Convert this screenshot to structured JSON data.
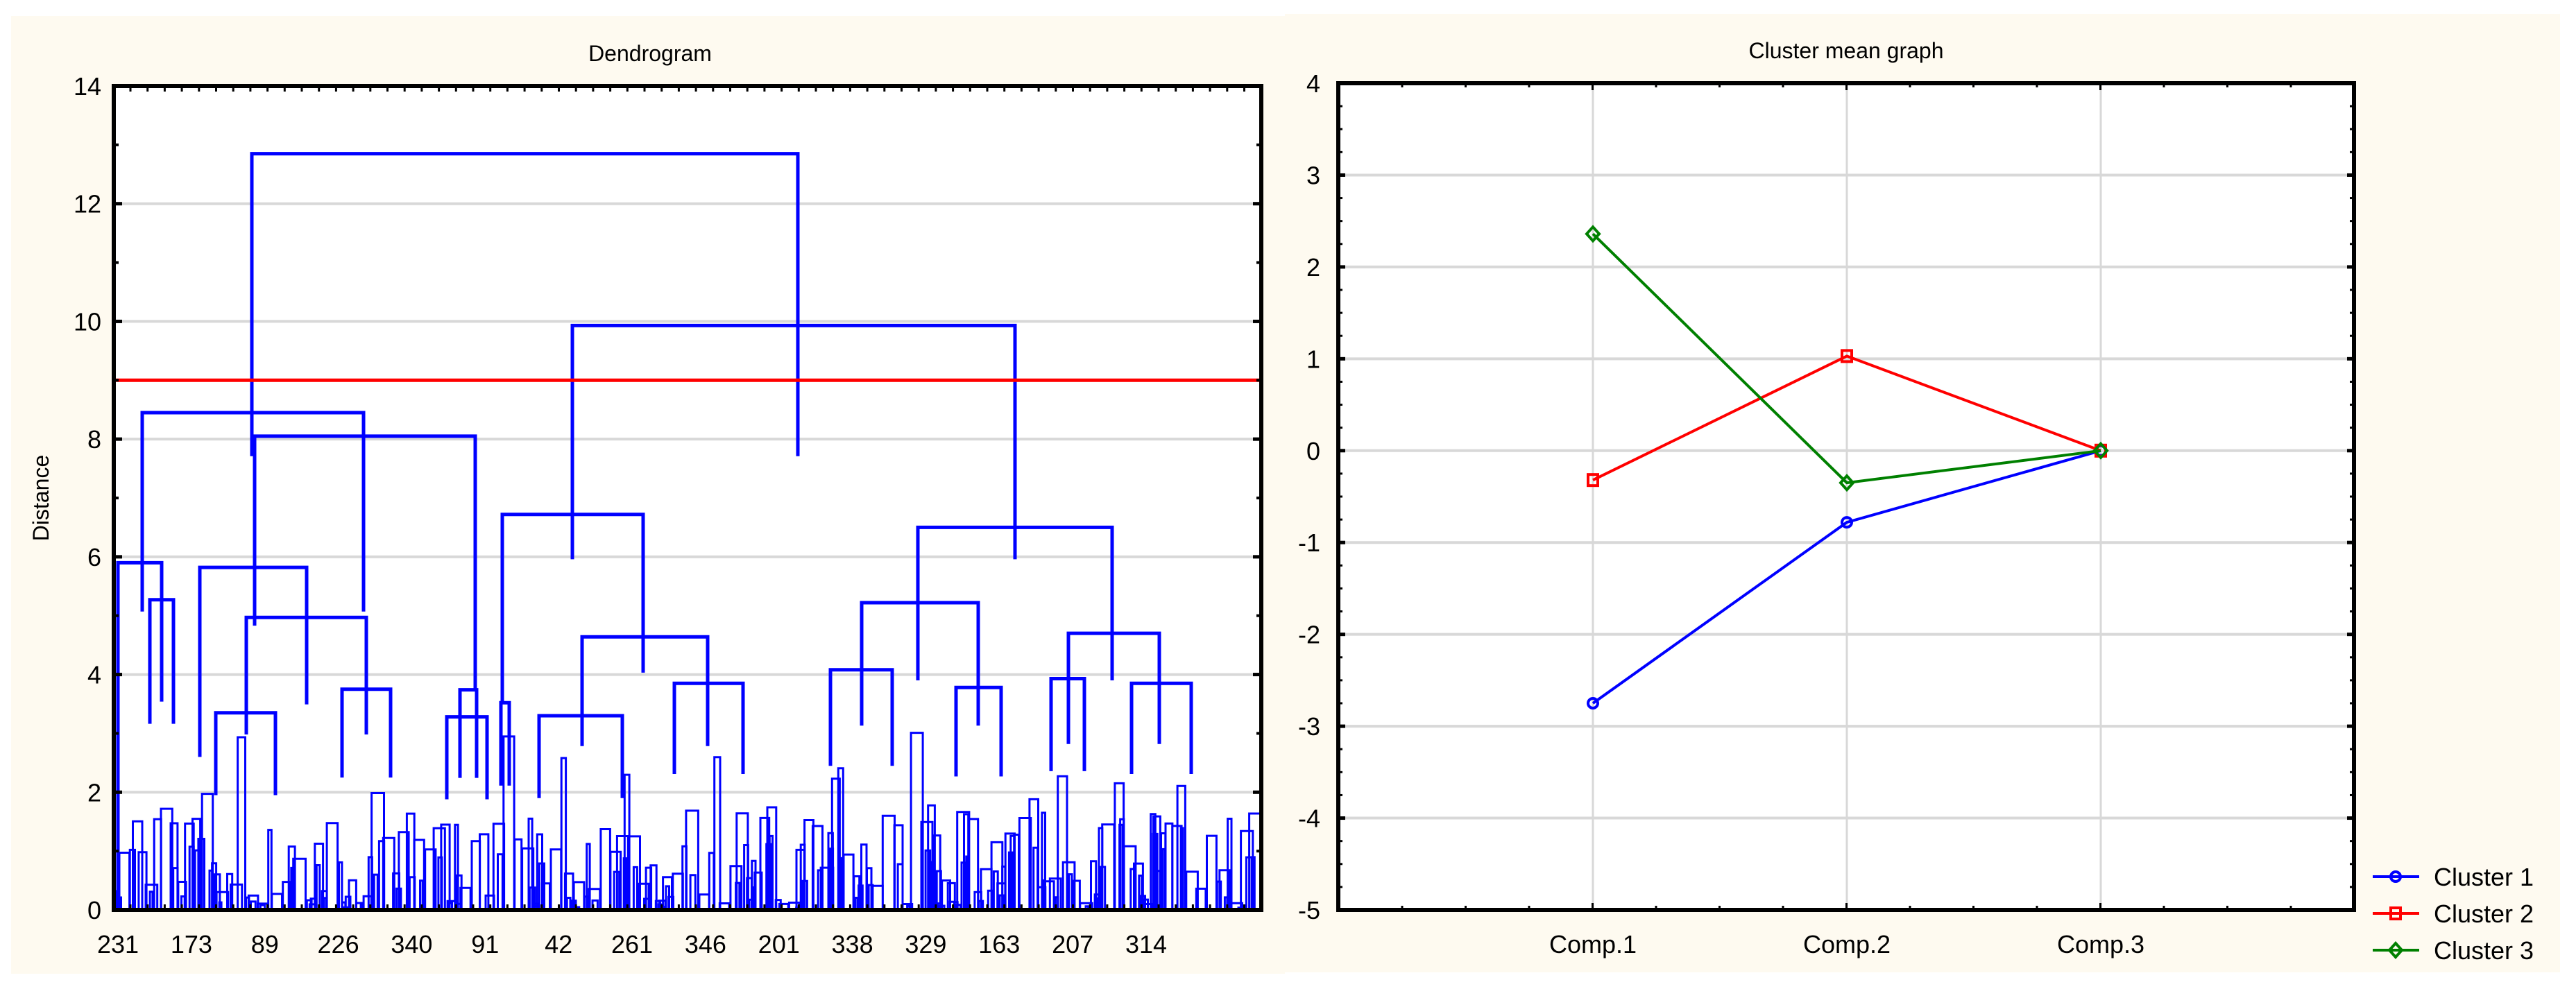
{
  "chart_data": [
    {
      "type": "dendrogram",
      "title": "Dendrogram",
      "xlabel": "",
      "ylabel": "Distance",
      "ylim": [
        0,
        14
      ],
      "yticks": [
        0,
        2,
        4,
        6,
        8,
        10,
        12,
        14
      ],
      "x_tick_labels": [
        "231",
        "173",
        "89",
        "226",
        "340",
        "91",
        "42",
        "261",
        "346",
        "201",
        "338",
        "329",
        "163",
        "207",
        "314"
      ],
      "cut_line": {
        "distance": 9.0,
        "color": "#ff0000"
      },
      "line_color": "#0000ff",
      "grid": true,
      "major_merges": [
        {
          "left_x": 363,
          "right_x": 1150,
          "height": 12.85
        },
        {
          "left_x": 205,
          "right_x": 524,
          "height": 8.45
        },
        {
          "left_x": 367,
          "right_x": 685,
          "height": 8.05
        },
        {
          "left_x": 825,
          "right_x": 1463,
          "height": 9.93
        },
        {
          "left_x": 724,
          "right_x": 927,
          "height": 6.72
        },
        {
          "left_x": 1323,
          "right_x": 1603,
          "height": 6.5
        },
        {
          "left_x": 170,
          "right_x": 233,
          "height": 5.9
        },
        {
          "left_x": 216,
          "right_x": 250,
          "height": 5.27
        },
        {
          "left_x": 288,
          "right_x": 442,
          "height": 5.82
        },
        {
          "left_x": 355,
          "right_x": 528,
          "height": 4.97
        },
        {
          "left_x": 839,
          "right_x": 1020,
          "height": 4.64
        },
        {
          "left_x": 1242,
          "right_x": 1410,
          "height": 5.22
        },
        {
          "left_x": 1540,
          "right_x": 1671,
          "height": 4.7
        },
        {
          "left_x": 311,
          "right_x": 397,
          "height": 3.35
        },
        {
          "left_x": 493,
          "right_x": 563,
          "height": 3.75
        },
        {
          "left_x": 644,
          "right_x": 702,
          "height": 3.28
        },
        {
          "left_x": 663,
          "right_x": 687,
          "height": 3.74
        },
        {
          "left_x": 722,
          "right_x": 734,
          "height": 3.52
        },
        {
          "left_x": 777,
          "right_x": 897,
          "height": 3.3
        },
        {
          "left_x": 972,
          "right_x": 1071,
          "height": 3.85
        },
        {
          "left_x": 1197,
          "right_x": 1286,
          "height": 4.08
        },
        {
          "left_x": 1378,
          "right_x": 1443,
          "height": 3.78
        },
        {
          "left_x": 1515,
          "right_x": 1563,
          "height": 3.93
        },
        {
          "left_x": 1631,
          "right_x": 1717,
          "height": 3.85
        }
      ]
    },
    {
      "type": "line",
      "title": "Cluster mean graph",
      "xlabel": "",
      "ylabel": "",
      "categories": [
        "Comp.1",
        "Comp.2",
        "Comp.3"
      ],
      "ylim": [
        -5,
        4
      ],
      "yticks": [
        -5,
        -4,
        -3,
        -2,
        -1,
        0,
        1,
        2,
        3,
        4
      ],
      "grid": true,
      "legend_position": "bottom-right",
      "series": [
        {
          "name": "Cluster 1",
          "color": "#0000ff",
          "marker": "circle",
          "values": [
            -2.75,
            -0.78,
            0.0
          ]
        },
        {
          "name": "Cluster 2",
          "color": "#ff0000",
          "marker": "square",
          "values": [
            -0.32,
            1.03,
            0.0
          ]
        },
        {
          "name": "Cluster 3",
          "color": "#008000",
          "marker": "diamond",
          "values": [
            2.36,
            -0.35,
            0.0
          ]
        }
      ]
    }
  ]
}
